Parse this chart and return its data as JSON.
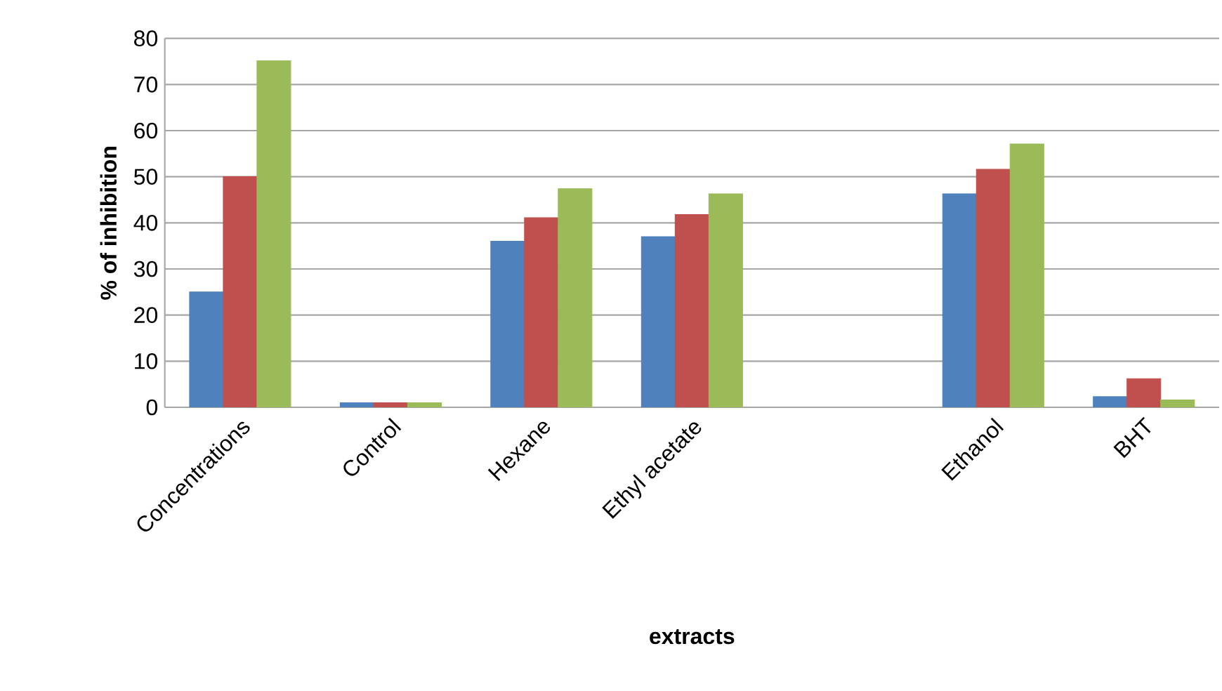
{
  "chart_data": {
    "type": "bar",
    "xlabel": "extracts",
    "ylabel": "% of inhibition",
    "categories": [
      "Concentrations",
      "Control",
      "Hexane",
      "Ethyl acetate",
      null,
      "Ethanol",
      "BHT"
    ],
    "series": [
      {
        "color": "#4f81bd",
        "values": [
          25,
          1,
          36,
          37,
          null,
          46.3,
          2.3
        ]
      },
      {
        "color": "#c0504d",
        "values": [
          50,
          1,
          41.1,
          41.8,
          null,
          51.6,
          6.2
        ]
      },
      {
        "color": "#9bbb59",
        "values": [
          75.2,
          1,
          47.4,
          46.3,
          null,
          57.1,
          1.6
        ]
      }
    ],
    "ylim": [
      0,
      80
    ],
    "yticks": [
      0,
      10,
      20,
      30,
      40,
      50,
      60,
      70,
      80
    ],
    "grid": "y"
  }
}
